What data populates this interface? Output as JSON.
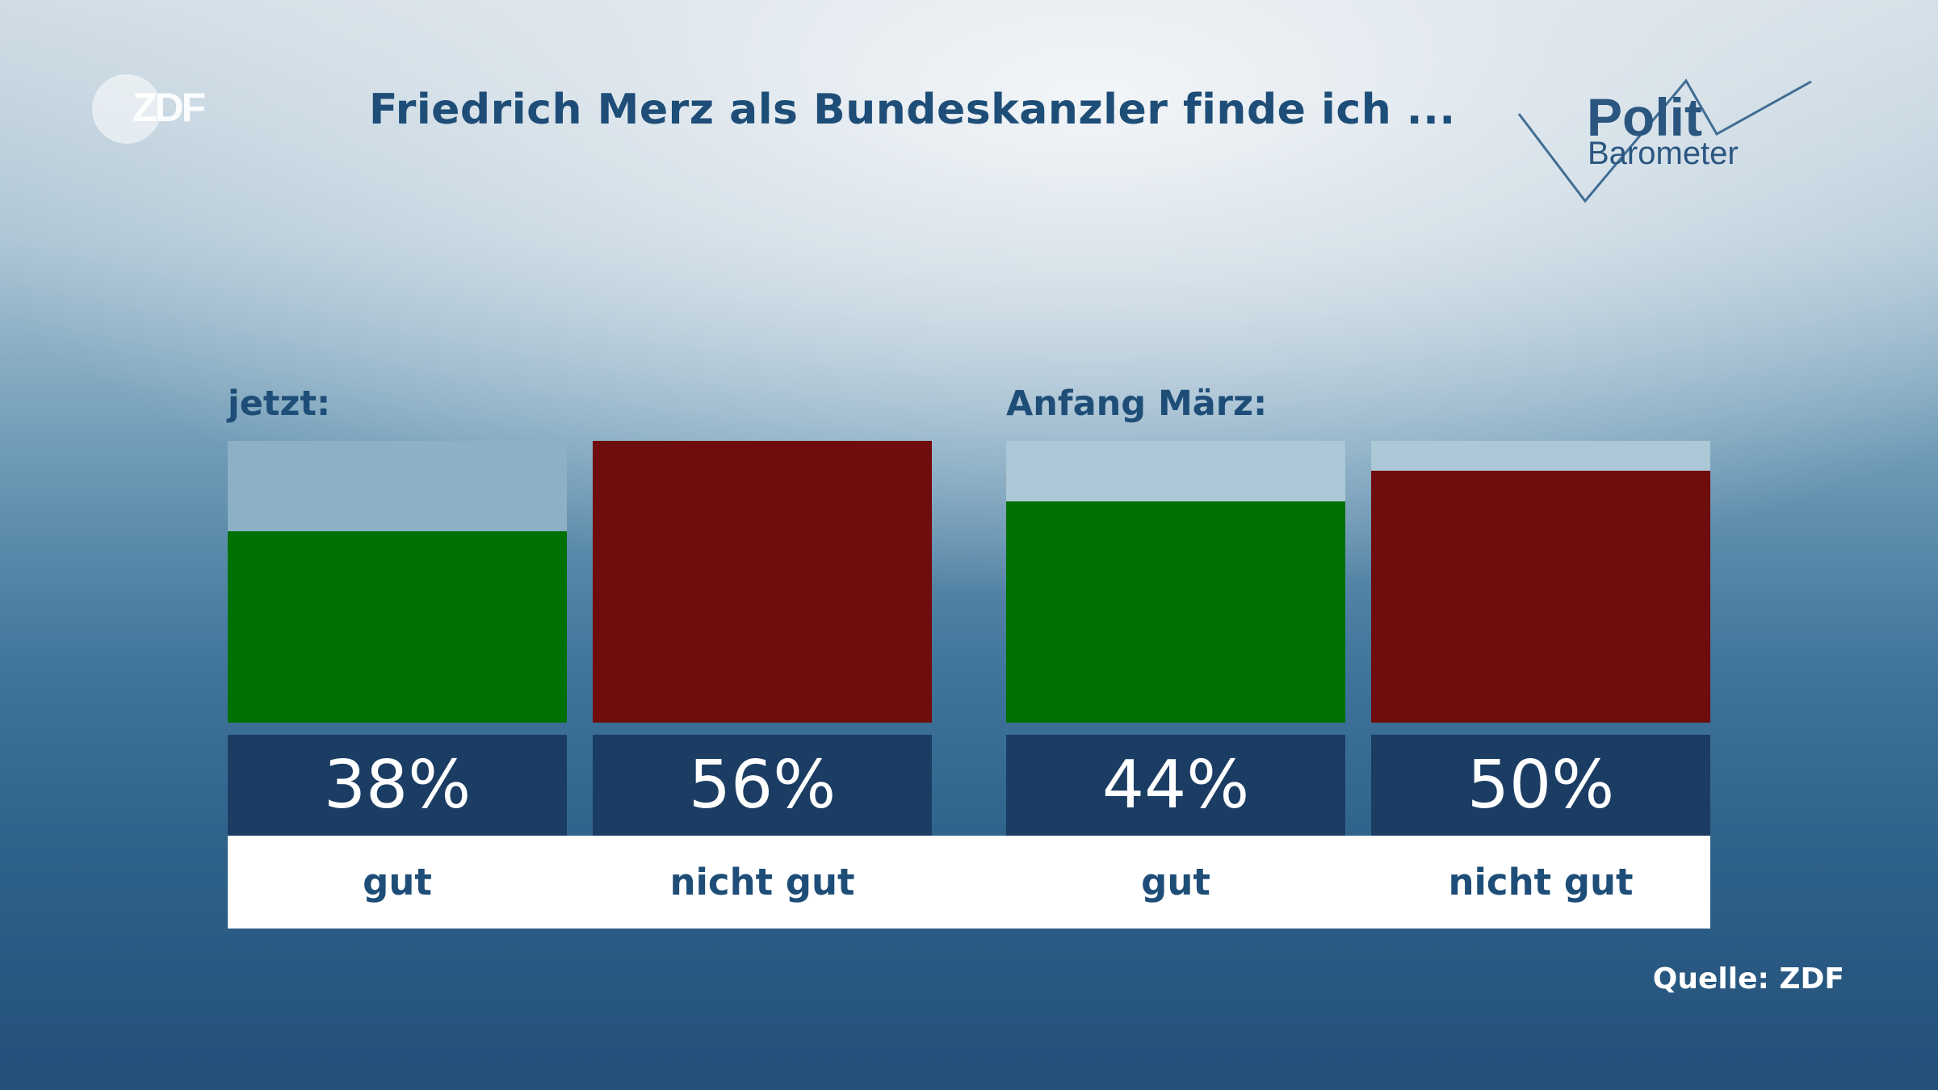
{
  "logo": {
    "text": "ZDF"
  },
  "title": "Friedrich Merz als Bundeskanzler finde ich ...",
  "brand": {
    "line1": "Polit",
    "line2": "Barometer"
  },
  "source": "Quelle: ZDF",
  "colors": {
    "good": "#007000",
    "bad": "#6e0c0e",
    "label_box": "#1b3d63",
    "text_dark": "#1e4e78",
    "bar_track_now": "#8db0c7",
    "bar_track_march": "#acc8d6"
  },
  "chart_data": {
    "type": "bar",
    "title": "Friedrich Merz als Bundeskanzler finde ich ...",
    "ylim": [
      0,
      56
    ],
    "groups": [
      {
        "label": "jetzt:",
        "categories": [
          "gut",
          "nicht gut"
        ],
        "values": [
          38,
          56
        ],
        "value_labels": [
          "38%",
          "56%"
        ]
      },
      {
        "label": "Anfang März:",
        "categories": [
          "gut",
          "nicht gut"
        ],
        "values": [
          44,
          50
        ],
        "value_labels": [
          "44%",
          "50%"
        ]
      }
    ]
  }
}
